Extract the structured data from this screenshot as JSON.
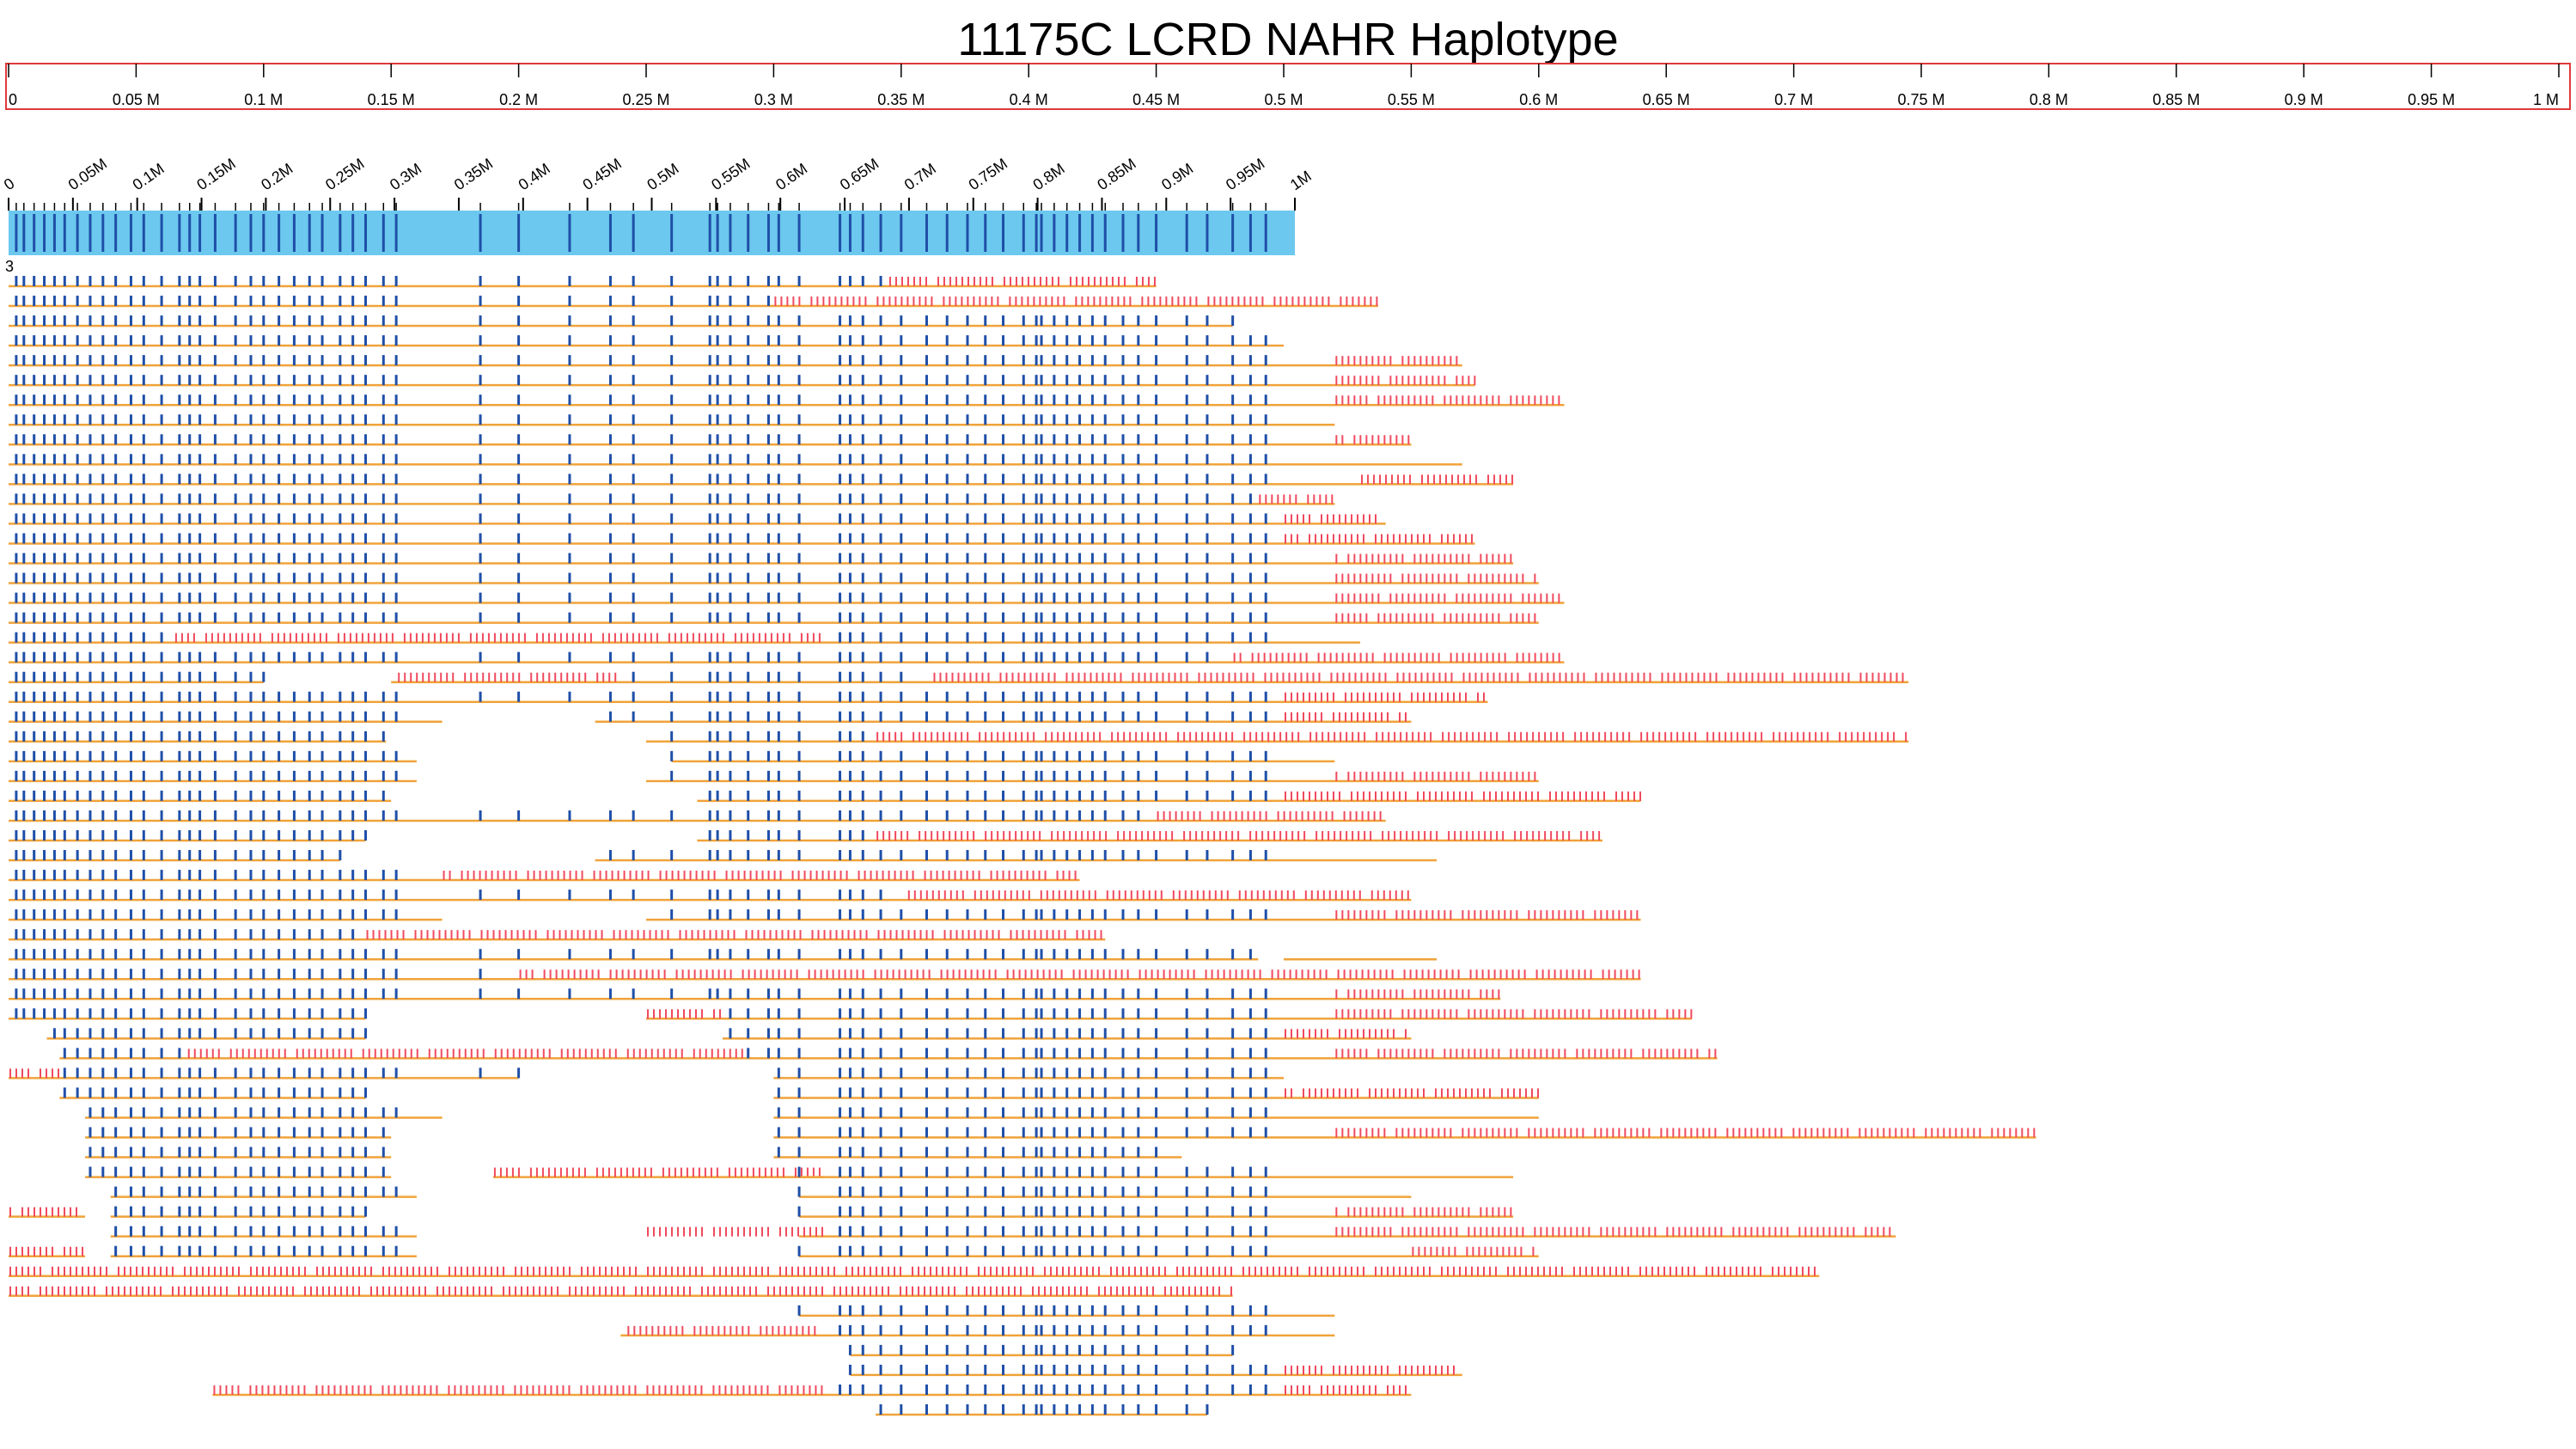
{
  "chart_data": {
    "type": "haplotype",
    "title": "11175C LCRD NAHR Haplotype",
    "track_label": "3",
    "xlim": [
      0,
      1
    ],
    "xticks": [
      {
        "value": 0,
        "label": "0"
      },
      {
        "value": 0.05,
        "label": "0.05 M"
      },
      {
        "value": 0.1,
        "label": "0.1 M"
      },
      {
        "value": 0.15,
        "label": "0.15 M"
      },
      {
        "value": 0.2,
        "label": "0.2 M"
      },
      {
        "value": 0.25,
        "label": "0.25 M"
      },
      {
        "value": 0.3,
        "label": "0.3 M"
      },
      {
        "value": 0.35,
        "label": "0.35 M"
      },
      {
        "value": 0.4,
        "label": "0.4 M"
      },
      {
        "value": 0.45,
        "label": "0.45 M"
      },
      {
        "value": 0.5,
        "label": "0.5 M"
      },
      {
        "value": 0.55,
        "label": "0.55 M"
      },
      {
        "value": 0.6,
        "label": "0.6 M"
      },
      {
        "value": 0.65,
        "label": "0.65 M"
      },
      {
        "value": 0.7,
        "label": "0.7 M"
      },
      {
        "value": 0.75,
        "label": "0.75 M"
      },
      {
        "value": 0.8,
        "label": "0.8 M"
      },
      {
        "value": 0.85,
        "label": "0.85 M"
      },
      {
        "value": 0.9,
        "label": "0.9 M"
      },
      {
        "value": 0.95,
        "label": "0.95 M"
      },
      {
        "value": 1,
        "label": "1 M"
      }
    ],
    "ref_xlim": [
      0,
      1
    ],
    "ref_xticks": [
      {
        "value": 0,
        "label": "0"
      },
      {
        "value": 0.05,
        "label": "0.05M"
      },
      {
        "value": 0.1,
        "label": "0.1M"
      },
      {
        "value": 0.15,
        "label": "0.15M"
      },
      {
        "value": 0.2,
        "label": "0.2M"
      },
      {
        "value": 0.25,
        "label": "0.25M"
      },
      {
        "value": 0.3,
        "label": "0.3M"
      },
      {
        "value": 0.35,
        "label": "0.35M"
      },
      {
        "value": 0.4,
        "label": "0.4M"
      },
      {
        "value": 0.45,
        "label": "0.45M"
      },
      {
        "value": 0.5,
        "label": "0.5M"
      },
      {
        "value": 0.55,
        "label": "0.55M"
      },
      {
        "value": 0.6,
        "label": "0.6M"
      },
      {
        "value": 0.65,
        "label": "0.65M"
      },
      {
        "value": 0.7,
        "label": "0.7M"
      },
      {
        "value": 0.75,
        "label": "0.75M"
      },
      {
        "value": 0.8,
        "label": "0.8M"
      },
      {
        "value": 0.85,
        "label": "0.85M"
      },
      {
        "value": 0.9,
        "label": "0.9M"
      },
      {
        "value": 0.95,
        "label": "0.95M"
      },
      {
        "value": 1,
        "label": "1M"
      }
    ],
    "colors": {
      "axis": "#e03a3a",
      "reference": "#6cc8ee",
      "site": "#1f4fa8",
      "read": "#f0a33a",
      "mismatch": "#f04a5e"
    },
    "sites": [
      0.003,
      0.006,
      0.01,
      0.014,
      0.018,
      0.022,
      0.027,
      0.032,
      0.037,
      0.042,
      0.048,
      0.053,
      0.06,
      0.067,
      0.071,
      0.075,
      0.081,
      0.089,
      0.095,
      0.1,
      0.106,
      0.112,
      0.118,
      0.123,
      0.13,
      0.135,
      0.14,
      0.147,
      0.152,
      0.185,
      0.2,
      0.22,
      0.236,
      0.245,
      0.26,
      0.275,
      0.278,
      0.283,
      0.29,
      0.298,
      0.302,
      0.31,
      0.326,
      0.33,
      0.335,
      0.342,
      0.35,
      0.36,
      0.368,
      0.376,
      0.383,
      0.39,
      0.398,
      0.403,
      0.405,
      0.41,
      0.415,
      0.42,
      0.425,
      0.43,
      0.437,
      0.443,
      0.45,
      0.462,
      0.47,
      0.48,
      0.487,
      0.493
    ],
    "rows": [
      [
        [
          0,
          0.45,
          [
            [
              0.345,
              0.45
            ]
          ]
        ]
      ],
      [
        [
          0,
          0.537,
          [
            [
              0.3,
              0.537
            ]
          ]
        ]
      ],
      [
        [
          0,
          0.48
        ]
      ],
      [
        [
          0,
          0.5
        ]
      ],
      [
        [
          0,
          0.57,
          [
            [
              0.52,
              0.57
            ]
          ]
        ]
      ],
      [
        [
          0,
          0.575,
          [
            [
              0.52,
              0.575
            ]
          ]
        ]
      ],
      [
        [
          0,
          0.61,
          [
            [
              0.52,
              0.61
            ]
          ]
        ]
      ],
      [
        [
          0,
          0.52
        ]
      ],
      [
        [
          0,
          0.55,
          [
            [
              0.52,
              0.55
            ]
          ]
        ]
      ],
      [
        [
          0,
          0.57
        ]
      ],
      [
        [
          0,
          0.59,
          [
            [
              0.53,
              0.59
            ]
          ]
        ]
      ],
      [
        [
          0,
          0.52,
          [
            [
              0.49,
              0.52
            ]
          ]
        ]
      ],
      [
        [
          0,
          0.54,
          [
            [
              0.5,
              0.54
            ]
          ]
        ]
      ],
      [
        [
          0,
          0.575,
          [
            [
              0.5,
              0.575
            ]
          ]
        ]
      ],
      [
        [
          0,
          0.59,
          [
            [
              0.52,
              0.59
            ]
          ]
        ]
      ],
      [
        [
          0,
          0.6,
          [
            [
              0.52,
              0.6
            ]
          ]
        ]
      ],
      [
        [
          0,
          0.61,
          [
            [
              0.52,
              0.61
            ]
          ]
        ]
      ],
      [
        [
          0,
          0.6,
          [
            [
              0.52,
              0.6
            ]
          ]
        ]
      ],
      [
        [
          0,
          0.53,
          [
            [
              0.065,
              0.32
            ]
          ]
        ]
      ],
      [
        [
          0,
          0.61,
          [
            [
              0.48,
              0.61
            ]
          ]
        ]
      ],
      [
        [
          0,
          0.1
        ],
        [
          0.15,
          0.745,
          [
            [
              0.15,
              0.24
            ],
            [
              0.36,
              0.745
            ]
          ]
        ]
      ],
      [
        [
          0,
          0.58,
          [
            [
              0.5,
              0.58
            ]
          ]
        ]
      ],
      [
        [
          0,
          0.17
        ],
        [
          0.23,
          0.55,
          [
            [
              0.5,
              0.55
            ]
          ]
        ]
      ],
      [
        [
          0,
          0.148
        ],
        [
          0.25,
          0.745,
          [
            [
              0.34,
              0.745
            ]
          ]
        ]
      ],
      [
        [
          0,
          0.16
        ],
        [
          0.26,
          0.52
        ]
      ],
      [
        [
          0,
          0.16
        ],
        [
          0.25,
          0.6,
          [
            [
              0.52,
              0.6
            ]
          ]
        ]
      ],
      [
        [
          0,
          0.15
        ],
        [
          0.27,
          0.64,
          [
            [
              0.5,
              0.64
            ]
          ]
        ]
      ],
      [
        [
          0,
          0.54,
          [
            [
              0.45,
              0.54
            ]
          ]
        ]
      ],
      [
        [
          0,
          0.14
        ],
        [
          0.27,
          0.625,
          [
            [
              0.34,
              0.625
            ]
          ]
        ]
      ],
      [
        [
          0,
          0.13
        ],
        [
          0.23,
          0.56
        ]
      ],
      [
        [
          0,
          0.42,
          [
            [
              0.17,
              0.42
            ]
          ]
        ]
      ],
      [
        [
          0,
          0.55,
          [
            [
              0.35,
              0.55
            ]
          ]
        ]
      ],
      [
        [
          0,
          0.17
        ],
        [
          0.25,
          0.64,
          [
            [
              0.52,
              0.64
            ]
          ]
        ]
      ],
      [
        [
          0,
          0.43,
          [
            [
              0.14,
              0.43
            ]
          ]
        ]
      ],
      [
        [
          0,
          0.49
        ],
        [
          0.5,
          0.56
        ]
      ],
      [
        [
          0,
          0.64,
          [
            [
              0.2,
              0.64
            ]
          ]
        ]
      ],
      [
        [
          0,
          0.585,
          [
            [
              0.52,
              0.585
            ]
          ]
        ]
      ],
      [
        [
          0,
          0.14
        ],
        [
          0.25,
          0.66,
          [
            [
              0.25,
              0.28
            ],
            [
              0.52,
              0.66
            ]
          ]
        ]
      ],
      [
        [
          0.015,
          0.14
        ],
        [
          0.28,
          0.55,
          [
            [
              0.5,
              0.55
            ]
          ]
        ]
      ],
      [
        [
          0.02,
          0.29,
          [
            [
              0.07,
              0.29
            ]
          ]
        ],
        [
          0.29,
          0.67,
          [
            [
              0.52,
              0.67
            ]
          ]
        ]
      ],
      [
        [
          0,
          0.02,
          [
            [
              0,
              0.02
            ]
          ]
        ],
        [
          0.02,
          0.2
        ],
        [
          0.3,
          0.5
        ]
      ],
      [
        [
          0.02,
          0.14
        ],
        [
          0.3,
          0.6,
          [
            [
              0.5,
              0.6
            ]
          ]
        ]
      ],
      [
        [
          0.03,
          0.17
        ],
        [
          0.3,
          0.6
        ]
      ],
      [
        [
          0.03,
          0.15
        ],
        [
          0.3,
          0.795,
          [
            [
              0.52,
              0.795
            ]
          ]
        ]
      ],
      [
        [
          0.03,
          0.15
        ],
        [
          0.3,
          0.46
        ]
      ],
      [
        [
          0.03,
          0.15
        ],
        [
          0.19,
          0.32,
          [
            [
              0.19,
              0.32
            ]
          ]
        ],
        [
          0.31,
          0.59
        ]
      ],
      [
        [
          0.04,
          0.16
        ],
        [
          0.31,
          0.55
        ]
      ],
      [
        [
          0,
          0.03,
          [
            [
              0,
              0.03
            ]
          ]
        ],
        [
          0.04,
          0.14
        ],
        [
          0.31,
          0.59,
          [
            [
              0.52,
              0.59
            ]
          ]
        ]
      ],
      [
        [
          0.04,
          0.16
        ],
        [
          0.31,
          0.74,
          [
            [
              0.25,
              0.32
            ],
            [
              0.52,
              0.74
            ]
          ]
        ]
      ],
      [
        [
          0,
          0.03,
          [
            [
              0,
              0.03
            ]
          ]
        ],
        [
          0.04,
          0.16
        ],
        [
          0.31,
          0.6,
          [
            [
              0.55,
              0.6
            ]
          ]
        ]
      ],
      [
        [
          0,
          0.71,
          [
            [
              0,
              0.71
            ]
          ]
        ]
      ],
      [
        [
          0,
          0.48,
          [
            [
              0,
              0.48
            ]
          ]
        ]
      ],
      [
        [
          0.31,
          0.52
        ]
      ],
      [
        [
          0.24,
          0.52,
          [
            [
              0.24,
              0.32
            ]
          ]
        ]
      ],
      [
        [
          0.33,
          0.48
        ]
      ],
      [
        [
          0.33,
          0.57,
          [
            [
              0.5,
              0.57
            ]
          ]
        ]
      ],
      [
        [
          0.08,
          0.55,
          [
            [
              0.08,
              0.32
            ],
            [
              0.5,
              0.55
            ]
          ]
        ]
      ],
      [
        [
          0.34,
          0.47
        ]
      ]
    ]
  }
}
